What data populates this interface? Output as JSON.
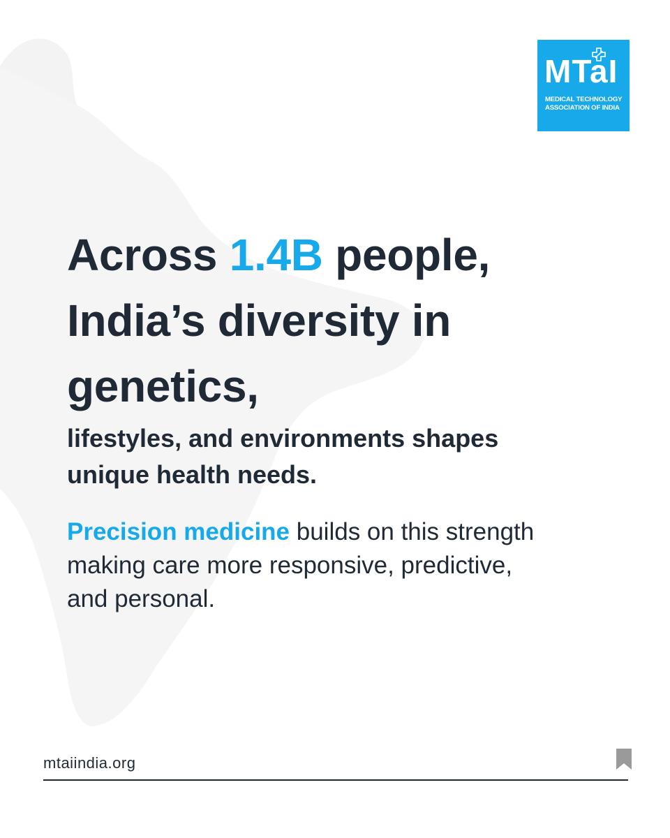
{
  "logo": {
    "mark": "MTaI",
    "subtitle": "MEDICAL TECHNOLOGY\nASSOCIATION OF INDIA",
    "icon": "medical-cross-icon",
    "color": "#17a9e9"
  },
  "headline": {
    "line1_prefix": "Across ",
    "line1_accent": "1.4B",
    "line1_suffix": " people,",
    "line2": "India’s diversity in",
    "line3": "genetics,"
  },
  "subhead": {
    "line1": "lifestyles, and environments shapes",
    "line2": "unique health needs."
  },
  "body": {
    "accent": "Precision medicine",
    "line1_rest": " builds on this strength",
    "line2": "making care more responsive, predictive,",
    "line3": "and personal."
  },
  "footer": {
    "url": "mtaiindia.org",
    "icon": "bookmark-icon"
  },
  "colors": {
    "accent": "#17a9e9",
    "text": "#1f2a36",
    "background": "#ffffff",
    "watermark": "#f6f6f6"
  },
  "background_icon": "india-map-icon"
}
